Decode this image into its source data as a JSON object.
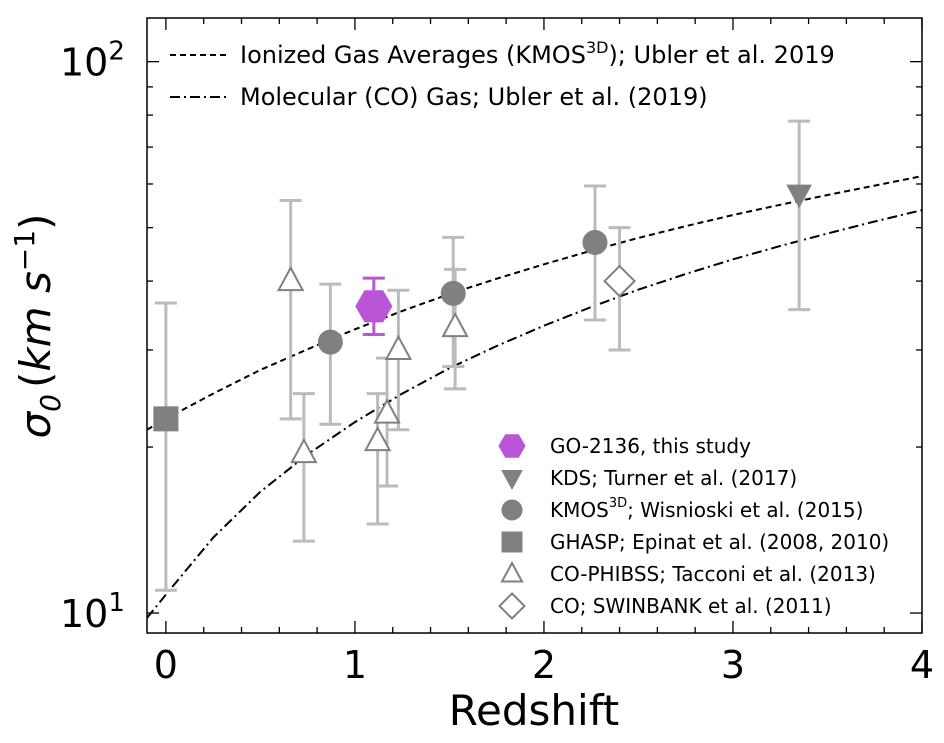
{
  "chart_data": {
    "type": "scatter",
    "xlabel": "Redshift",
    "ylabel": "σ₀ (km s⁻¹)",
    "ylabel_parts": {
      "sym": "σ",
      "sub": "0",
      "open": "(",
      "units": "km s",
      "exp": "−1",
      "close": ")"
    },
    "xlim": [
      -0.1,
      4.0
    ],
    "ylim": [
      9.2,
      120
    ],
    "yscale": "log",
    "x_ticks": [
      {
        "value": 0,
        "label": "0"
      },
      {
        "value": 1,
        "label": "1"
      },
      {
        "value": 2,
        "label": "2"
      },
      {
        "value": 3,
        "label": "3"
      },
      {
        "value": 4,
        "label": "4"
      }
    ],
    "y_ticks": [
      {
        "value": 10,
        "base": "10",
        "exp": "1"
      },
      {
        "value": 100,
        "base": "10",
        "exp": "2"
      }
    ],
    "curves": [
      {
        "name": "ionized",
        "label_parts": {
          "pre": "Ionized Gas Averages (KMOS",
          "sup": "3D",
          "post": "); Ubler et al. 2019"
        },
        "style": "dashed",
        "x": [
          -0.1,
          0.0,
          0.25,
          0.5,
          0.75,
          1.0,
          1.25,
          1.5,
          1.75,
          2.0,
          2.25,
          2.5,
          2.75,
          3.0,
          3.25,
          3.5,
          3.75,
          4.0
        ],
        "y": [
          21.5,
          22.5,
          25.0,
          27.6,
          30.1,
          32.7,
          35.3,
          37.9,
          40.4,
          42.9,
          45.4,
          47.9,
          50.3,
          52.7,
          55.0,
          57.3,
          59.6,
          62.0
        ]
      },
      {
        "name": "molecular",
        "label_parts": {
          "pre": "Molecular (CO) Gas; Ubler et al. (2019)",
          "sup": "",
          "post": ""
        },
        "style": "dashdot",
        "x": [
          -0.1,
          0.0,
          0.25,
          0.5,
          0.75,
          1.0,
          1.25,
          1.5,
          1.75,
          2.0,
          2.25,
          2.5,
          2.75,
          3.0,
          3.25,
          3.5,
          3.75,
          4.0
        ],
        "y": [
          9.8,
          10.8,
          13.7,
          16.6,
          19.4,
          22.2,
          25.0,
          27.8,
          30.5,
          33.2,
          35.9,
          38.6,
          41.2,
          43.8,
          46.3,
          48.8,
          51.3,
          53.8
        ]
      }
    ],
    "series": [
      {
        "name": "GO-2136, this study",
        "label_parts": {
          "pre": "GO-2136, this study",
          "sup": "",
          "post": ""
        },
        "marker": "hexagon",
        "color": "#bb55d8",
        "filled": true,
        "points": [
          {
            "x": 1.1,
            "y": 36.0,
            "lo": 32.0,
            "hi": 40.5
          }
        ]
      },
      {
        "name": "KDS; Turner et al. (2017)",
        "label_parts": {
          "pre": "KDS; Turner et al. (2017)",
          "sup": "",
          "post": ""
        },
        "marker": "triangle-down",
        "color": "#808080",
        "filled": true,
        "points": [
          {
            "x": 3.35,
            "y": 57.5,
            "lo": 35.5,
            "hi": 78.0
          }
        ]
      },
      {
        "name": "KMOS3D; Wisnioski et al. (2015)",
        "label_parts": {
          "pre": "KMOS",
          "sup": "3D",
          "post": "; Wisnioski et al. (2015)"
        },
        "marker": "circle",
        "color": "#808080",
        "filled": true,
        "points": [
          {
            "x": 0.87,
            "y": 31.0,
            "lo": 22.0,
            "hi": 39.5
          },
          {
            "x": 1.52,
            "y": 38.0,
            "lo": 28.0,
            "hi": 48.0
          },
          {
            "x": 2.27,
            "y": 47.0,
            "lo": 34.0,
            "hi": 59.5
          }
        ]
      },
      {
        "name": "GHASP; Epinat et al. (2008, 2010)",
        "label_parts": {
          "pre": "GHASP; Epinat et al. (2008, 2010)",
          "sup": "",
          "post": ""
        },
        "marker": "square",
        "color": "#808080",
        "filled": true,
        "points": [
          {
            "x": 0.0,
            "y": 22.5,
            "lo": 11.0,
            "hi": 36.5
          }
        ]
      },
      {
        "name": "CO-PHIBSS; Tacconi et al. (2013)",
        "label_parts": {
          "pre": "CO-PHIBSS; Tacconi et al. (2013)",
          "sup": "",
          "post": ""
        },
        "marker": "triangle-up",
        "color": "#808080",
        "filled": false,
        "points": [
          {
            "x": 0.66,
            "y": 40.0,
            "lo": 22.5,
            "hi": 56.0
          },
          {
            "x": 0.73,
            "y": 19.5,
            "lo": 13.5,
            "hi": 25.0
          },
          {
            "x": 1.12,
            "y": 20.5,
            "lo": 14.5,
            "hi": 25.0
          },
          {
            "x": 1.17,
            "y": 23.0,
            "lo": 17.0,
            "hi": 29.0
          },
          {
            "x": 1.23,
            "y": 30.0,
            "lo": 21.5,
            "hi": 38.5
          },
          {
            "x": 1.53,
            "y": 33.0,
            "lo": 25.5,
            "hi": 42.0
          }
        ]
      },
      {
        "name": "CO; SWINBANK et al. (2011)",
        "label_parts": {
          "pre": "CO; SWINBANK et al. (2011)",
          "sup": "",
          "post": ""
        },
        "marker": "diamond",
        "color": "#808080",
        "filled": false,
        "points": [
          {
            "x": 2.4,
            "y": 40.0,
            "lo": 30.0,
            "hi": 50.0
          }
        ]
      }
    ],
    "legend_curves_location": "upper-left",
    "legend_markers_location": "lower-right",
    "grid": false
  }
}
